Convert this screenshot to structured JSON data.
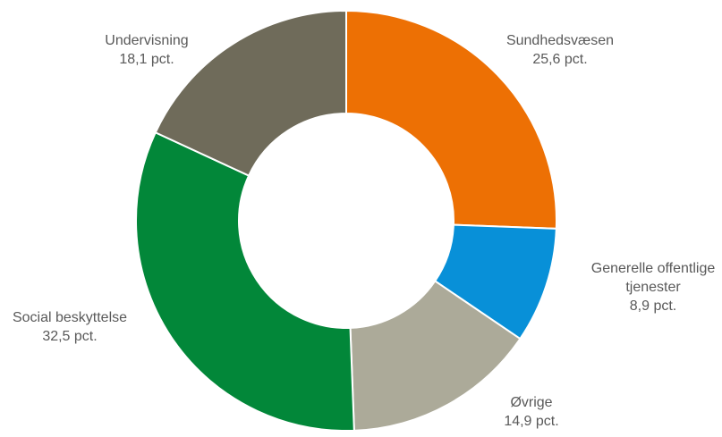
{
  "chart_data": {
    "type": "pie",
    "title": "",
    "donut": true,
    "slices": [
      {
        "label": "Sundhedsvæsen",
        "value": 25.6,
        "value_text": "25,6 pct.",
        "color": "#ED7004"
      },
      {
        "label": "Generelle offentlige tjenester",
        "value": 8.9,
        "value_text": "8,9 pct.",
        "color": "#0890D8"
      },
      {
        "label": "Øvrige",
        "value": 14.9,
        "value_text": "14,9 pct.",
        "color": "#ACAA99"
      },
      {
        "label": "Social beskyttelse",
        "value": 32.5,
        "value_text": "32,5 pct.",
        "color": "#028739"
      },
      {
        "label": "Undervisning",
        "value": 18.1,
        "value_text": "18,1 pct.",
        "color": "#6F6B5A"
      }
    ]
  }
}
